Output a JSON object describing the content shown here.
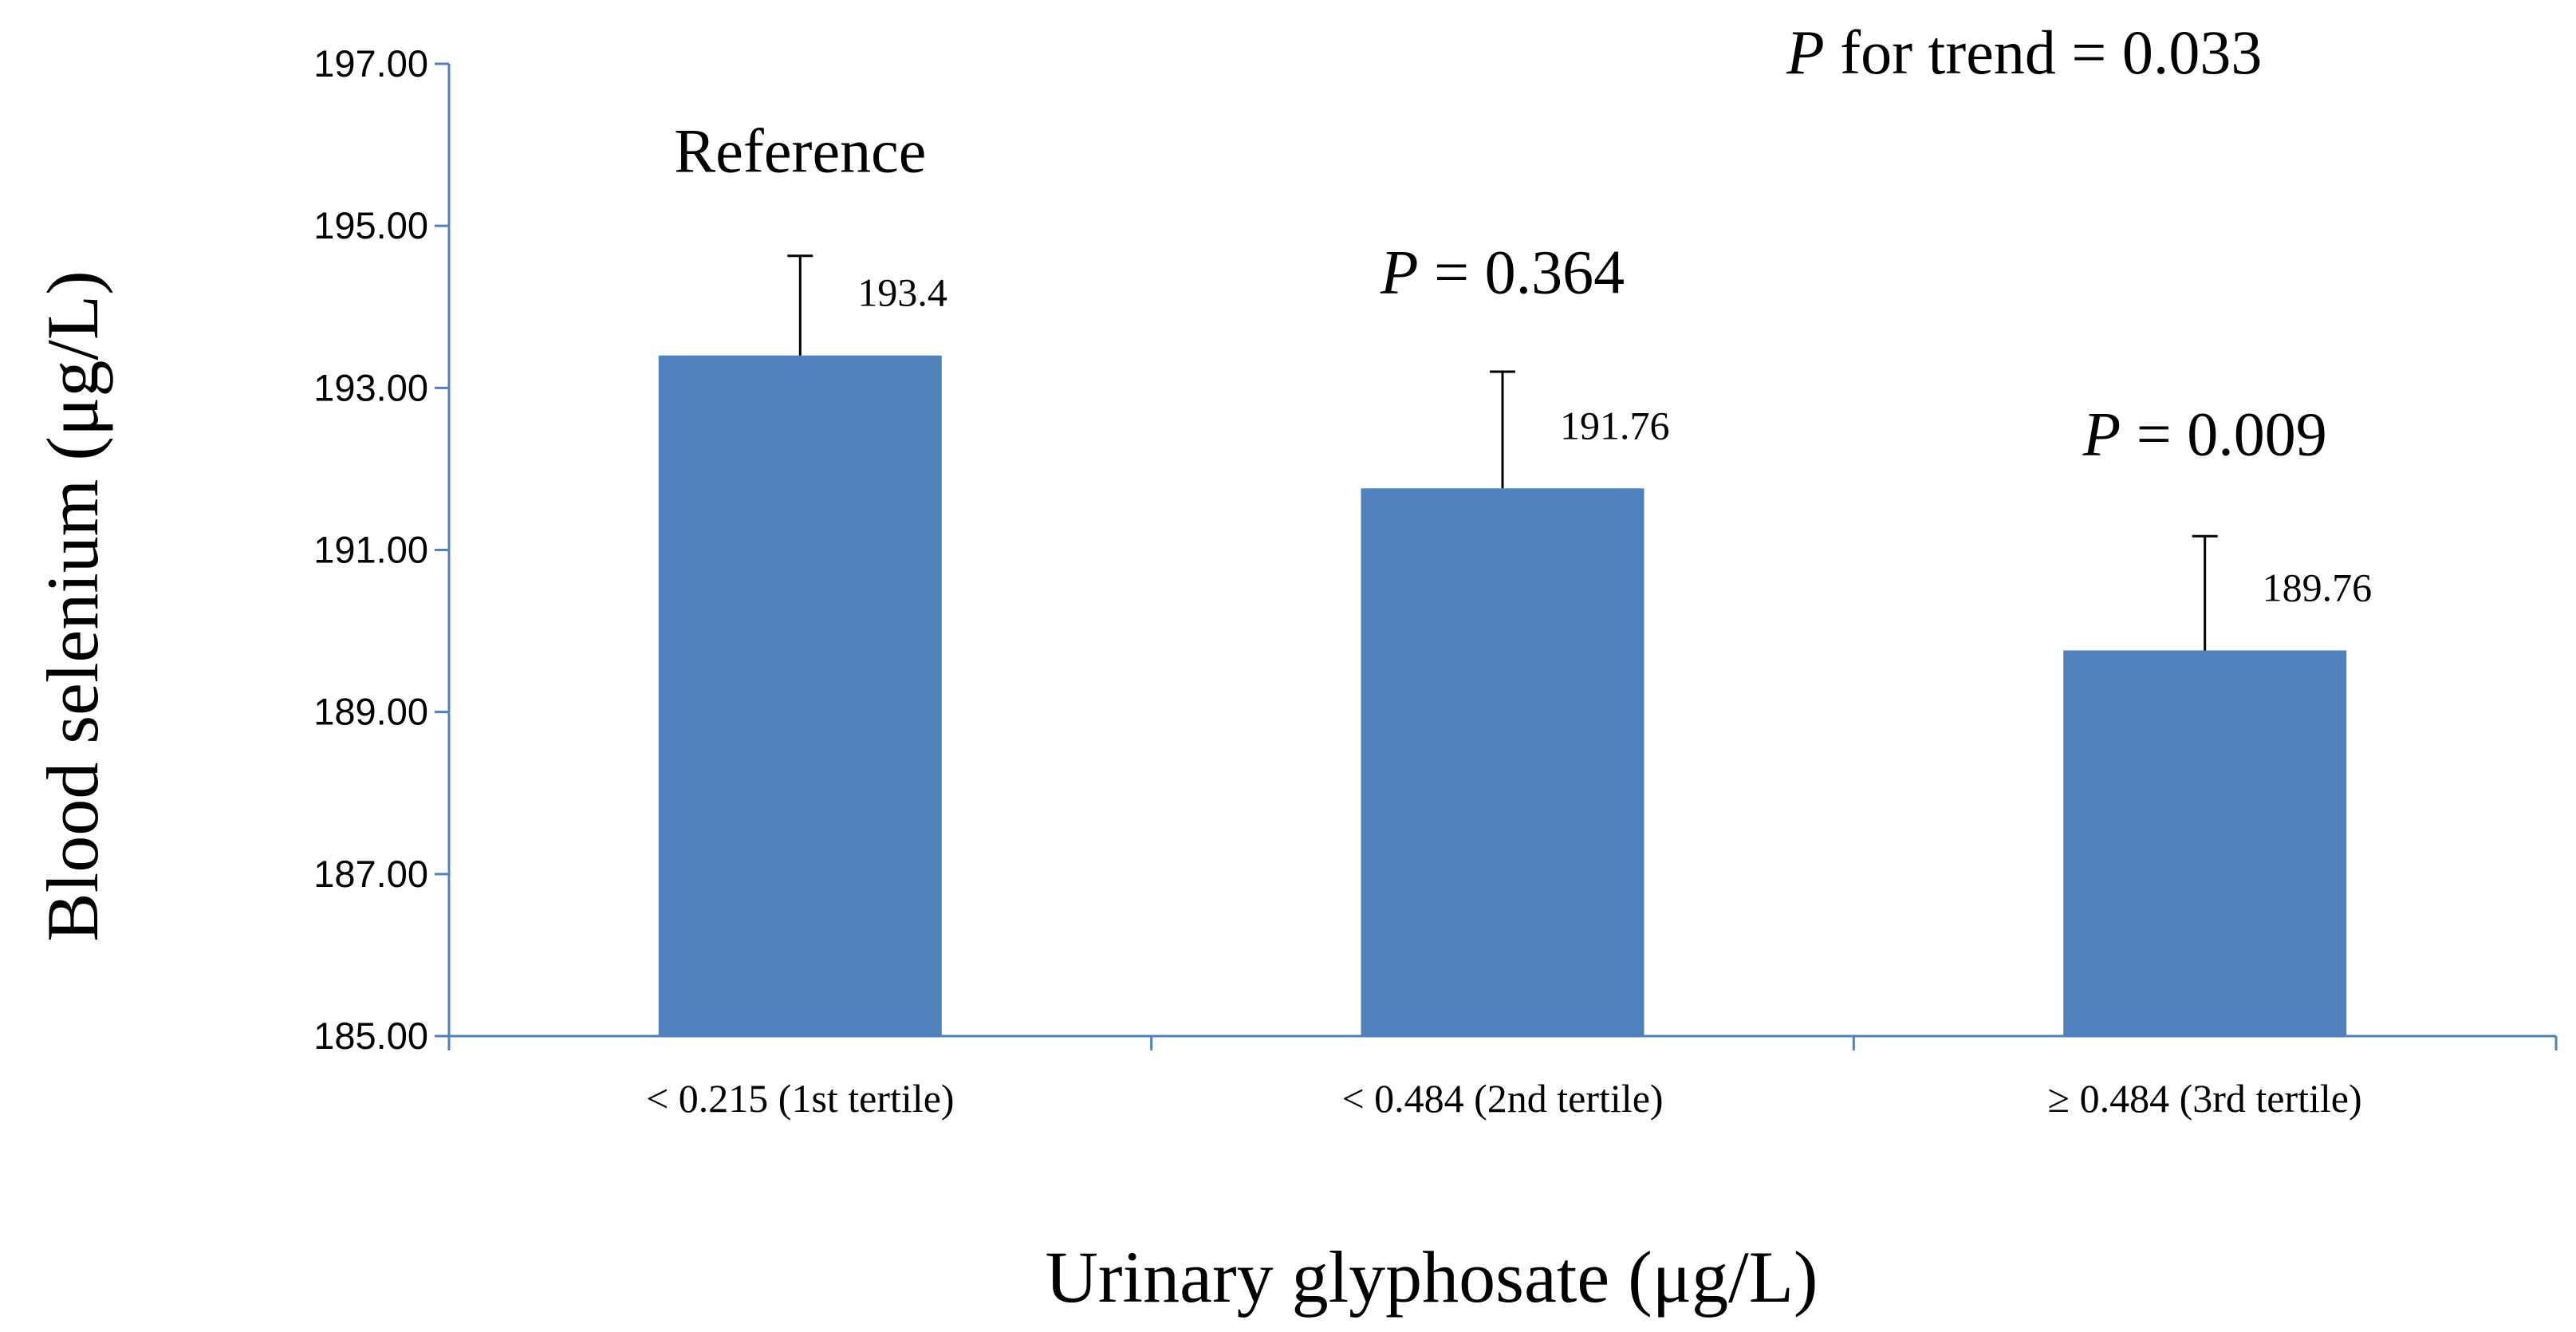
{
  "chart_data": {
    "type": "bar",
    "categories": [
      "< 0.215 (1st tertile)",
      "< 0.484 (2nd tertile)",
      "≥ 0.484  (3rd tertile)"
    ],
    "values": [
      193.4,
      191.76,
      189.76
    ],
    "value_labels": [
      "193.4",
      "191.76",
      "189.76"
    ],
    "error_upper": [
      194.63,
      193.2,
      191.17
    ],
    "xlabel": "Urinary  glyphosate  (μg/L)",
    "ylabel": "Blood selenium  (μg/L)",
    "ylim": [
      185,
      197
    ],
    "yticks": [
      "185.00",
      "187.00",
      "189.00",
      "191.00",
      "193.00",
      "195.00",
      "197.00"
    ],
    "grid": false,
    "legend": "none",
    "bar_annotations": [
      {
        "italic": "",
        "text": "Reference"
      },
      {
        "italic": "P",
        "text": " = 0.364"
      },
      {
        "italic": "P",
        "text": " = 0.009"
      }
    ],
    "trend_annotation": {
      "italic": "P",
      "text": "  for trend = 0.033"
    },
    "colors": {
      "bar": "#4f81bd",
      "axis": "#4f81bd",
      "error": "#000000"
    }
  }
}
